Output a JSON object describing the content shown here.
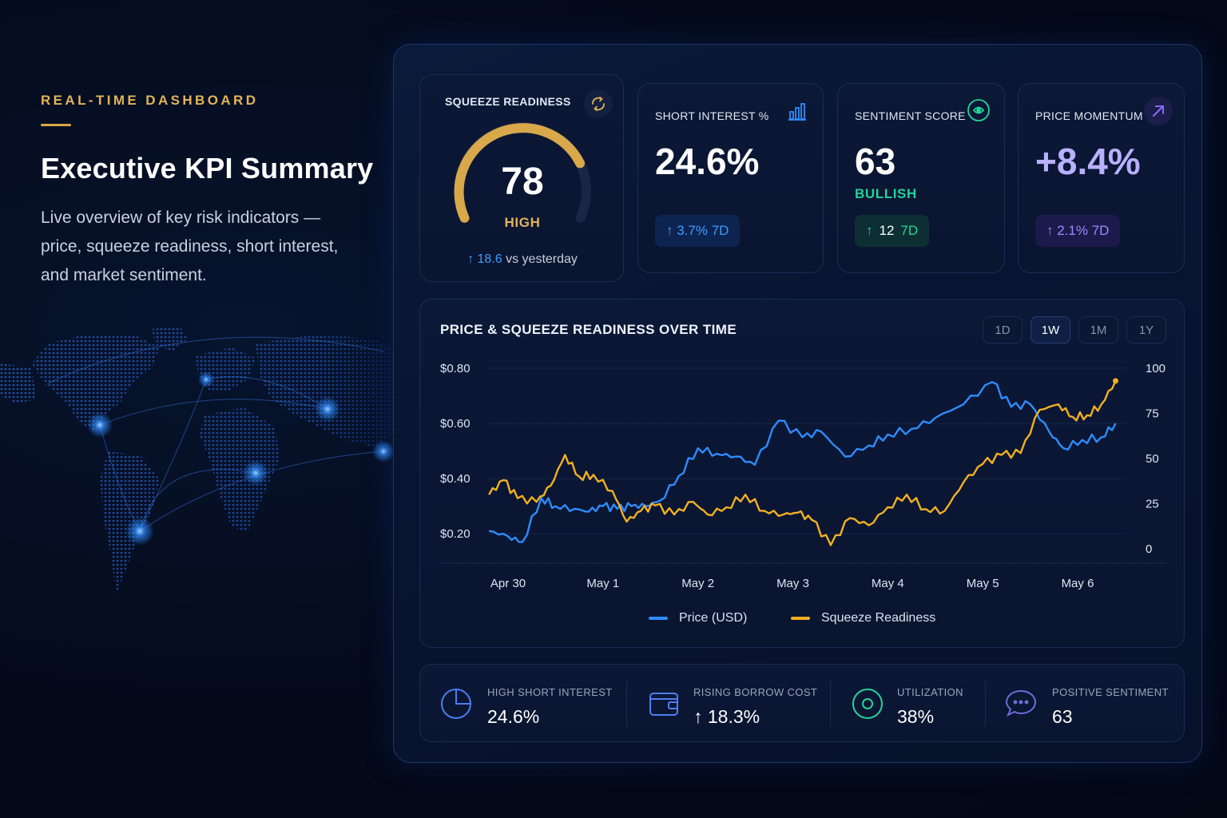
{
  "intro": {
    "eyebrow": "REAL-TIME DASHBOARD",
    "title": "Executive KPI Summary",
    "description": "Live overview of key risk indicators — price, squeeze readiness, short interest, and market sentiment."
  },
  "colors": {
    "gold": "#e2b45a",
    "blue": "#2f8cff",
    "green": "#22d49a",
    "purple": "#a99cff",
    "squeeze_line": "#f2b021",
    "price_line": "#2f8cff"
  },
  "kpis": {
    "squeeze": {
      "title": "SQUEEZE READINESS",
      "icon": "refresh-cycle-icon",
      "value": "78",
      "gauge_fraction": 0.78,
      "level": "HIGH",
      "delta_arrow": "↑",
      "delta_value": "18.6",
      "delta_suffix": "vs yesterday"
    },
    "short_interest": {
      "title": "SHORT INTEREST %",
      "icon": "bar-chart-icon",
      "value": "24.6%",
      "change": "↑ 3.7% 7D"
    },
    "sentiment": {
      "title": "SENTIMENT SCORE",
      "icon": "eye-circle-icon",
      "value": "63",
      "label": "BULLISH",
      "change_arrow": "↑",
      "change_value": "12",
      "change_period": "7D"
    },
    "momentum": {
      "title": "PRICE MOMENTUM",
      "icon": "trend-up-arrow-icon",
      "value": "+8.4%",
      "change": "↑ 2.1% 7D"
    }
  },
  "chart_panel": {
    "title": "PRICE & SQUEEZE READINESS OVER TIME",
    "ranges": [
      "1D",
      "1W",
      "1M",
      "1Y"
    ],
    "active_range": "1W",
    "legend": [
      "Price (USD)",
      "Squeeze Readiness"
    ]
  },
  "chart_data": {
    "type": "line",
    "x_ticks": [
      "Apr 30",
      "May 1",
      "May 2",
      "May 3",
      "May 4",
      "May 5",
      "May 6"
    ],
    "y_left_ticks": [
      "$0.80",
      "$0.60",
      "$0.40",
      "$0.20"
    ],
    "y_left_values": [
      0.8,
      0.6,
      0.4,
      0.2
    ],
    "y_left_range": [
      0.18,
      0.8
    ],
    "y_right_ticks": [
      "100",
      "75",
      "50",
      "25",
      "0"
    ],
    "y_right_values": [
      100,
      75,
      50,
      25,
      0
    ],
    "y_right_range": [
      0,
      100
    ],
    "grid": true,
    "legend_position": "bottom",
    "series": [
      {
        "name": "Price (USD)",
        "axis": "left",
        "x": [
          -0.2,
          0.0,
          0.15,
          0.35,
          0.5,
          0.7,
          0.85,
          1.0,
          1.15,
          1.3,
          1.45,
          1.6,
          1.8,
          2.0,
          2.2,
          2.4,
          2.6,
          2.85,
          3.1,
          3.3,
          3.55,
          3.8,
          4.0,
          4.25,
          4.5,
          4.8,
          5.1,
          5.3,
          5.5,
          5.7,
          5.85,
          6.05,
          6.25,
          6.4
        ],
        "y": [
          0.21,
          0.19,
          0.17,
          0.33,
          0.3,
          0.29,
          0.28,
          0.3,
          0.29,
          0.3,
          0.3,
          0.32,
          0.41,
          0.51,
          0.49,
          0.48,
          0.45,
          0.61,
          0.55,
          0.57,
          0.48,
          0.52,
          0.56,
          0.58,
          0.62,
          0.67,
          0.75,
          0.66,
          0.67,
          0.57,
          0.51,
          0.54,
          0.55,
          0.6
        ]
      },
      {
        "name": "Squeeze Readiness",
        "axis": "right",
        "x": [
          -0.2,
          -0.05,
          0.1,
          0.3,
          0.45,
          0.6,
          0.75,
          0.9,
          1.1,
          1.25,
          1.4,
          1.55,
          1.75,
          1.95,
          2.1,
          2.3,
          2.5,
          2.7,
          2.9,
          3.05,
          3.2,
          3.4,
          3.6,
          3.8,
          4.0,
          4.2,
          4.4,
          4.6,
          4.8,
          5.0,
          5.2,
          5.4,
          5.6,
          5.8,
          5.95,
          6.1,
          6.25,
          6.4
        ],
        "y": [
          30,
          38,
          28,
          26,
          35,
          52,
          40,
          41,
          32,
          15,
          21,
          24,
          19,
          26,
          19,
          23,
          30,
          21,
          19,
          20,
          16,
          2,
          17,
          13,
          23,
          30,
          22,
          21,
          37,
          47,
          52,
          53,
          77,
          80,
          73,
          74,
          80,
          93
        ]
      }
    ]
  },
  "stats": [
    {
      "label": "HIGH SHORT INTEREST",
      "value": "24.6%",
      "icon": "pie-chart-icon"
    },
    {
      "label": "RISING BORROW COST",
      "value": "↑ 18.3%",
      "icon": "wallet-icon"
    },
    {
      "label": "UTILIZATION",
      "value": "38%",
      "icon": "target-ring-icon"
    },
    {
      "label": "POSITIVE SENTIMENT",
      "value": "63",
      "icon": "chat-bubble-icon"
    }
  ]
}
